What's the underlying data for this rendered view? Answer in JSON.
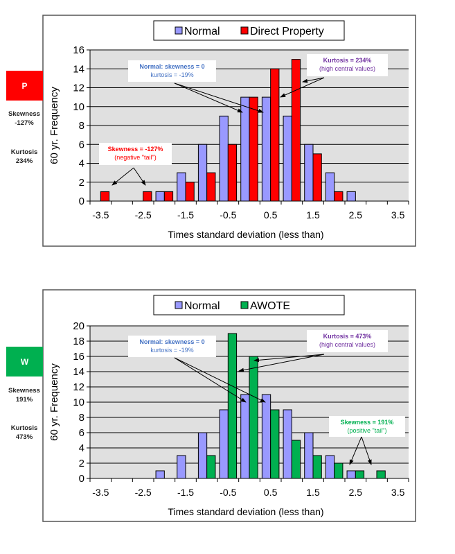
{
  "panels": [
    {
      "badge": {
        "label": "P",
        "color": "#ff0000"
      },
      "skewness": {
        "label": "Skewness",
        "value": "-127%"
      },
      "kurtosis": {
        "label": "Kurtosis",
        "value": "234%"
      }
    },
    {
      "badge": {
        "label": "W",
        "color": "#00b050"
      },
      "skewness": {
        "label": "Skewness",
        "value": "191%"
      },
      "kurtosis": {
        "label": "Kurtosis",
        "value": "473%"
      }
    }
  ],
  "chart_data": [
    {
      "type": "bar",
      "xlabel": "Times standard deviation (less than)",
      "ylabel": "60 yr. Frequency",
      "ylim": [
        0,
        16
      ],
      "yticks": [
        0,
        2,
        4,
        6,
        8,
        10,
        12,
        14,
        16
      ],
      "grid": true,
      "legend": "top",
      "categories": [
        -3.5,
        -3.0,
        -2.5,
        -2.0,
        -1.5,
        -1.0,
        -0.5,
        0.0,
        0.5,
        1.0,
        1.5,
        2.0,
        2.5,
        3.0,
        3.5
      ],
      "xtick_labels": [
        "-3.5",
        "-2.5",
        "-1.5",
        "-0.5",
        "0.5",
        "1.5",
        "2.5",
        "3.5"
      ],
      "series": [
        {
          "name": "Normal",
          "color": "#9999ff",
          "values": [
            0,
            0,
            0,
            1,
            3,
            6,
            9,
            11,
            11,
            9,
            6,
            3,
            1,
            0,
            0
          ]
        },
        {
          "name": "Direct Property",
          "color": "#ff0000",
          "values": [
            1,
            0,
            1,
            1,
            2,
            3,
            6,
            11,
            14,
            15,
            5,
            1,
            0,
            0,
            0
          ]
        }
      ],
      "annotations": [
        {
          "lines": [
            "Normal: skewness  = 0",
            "kurtosis = -19%"
          ],
          "bold_prefix": "Normal",
          "color": "#4472c4"
        },
        {
          "lines": [
            "Kurtosis  = 234%",
            "(high central values)"
          ],
          "color": "#7030a0"
        },
        {
          "lines": [
            "Skewness = -127%",
            "(negative  \"tail\")"
          ],
          "color": "#ff0000"
        }
      ]
    },
    {
      "type": "bar",
      "xlabel": "Times standard deviation (less than)",
      "ylabel": "60 yr. Frequency",
      "ylim": [
        0,
        20
      ],
      "yticks": [
        0,
        2,
        4,
        6,
        8,
        10,
        12,
        14,
        16,
        18,
        20
      ],
      "grid": true,
      "legend": "top",
      "categories": [
        -3.5,
        -3.0,
        -2.5,
        -2.0,
        -1.5,
        -1.0,
        -0.5,
        0.0,
        0.5,
        1.0,
        1.5,
        2.0,
        2.5,
        3.0,
        3.5
      ],
      "xtick_labels": [
        "-3.5",
        "-2.5",
        "-1.5",
        "-0.5",
        "0.5",
        "1.5",
        "2.5",
        "3.5"
      ],
      "series": [
        {
          "name": "Normal",
          "color": "#9999ff",
          "values": [
            0,
            0,
            0,
            1,
            3,
            6,
            9,
            11,
            11,
            9,
            6,
            3,
            1,
            0,
            0
          ]
        },
        {
          "name": "AWOTE",
          "color": "#00b050",
          "values": [
            0,
            0,
            0,
            0,
            0,
            3,
            19,
            16,
            9,
            5,
            3,
            2,
            1,
            1,
            0
          ]
        }
      ],
      "annotations": [
        {
          "lines": [
            "Normal: skewness  = 0",
            "kurtosis = -19%"
          ],
          "bold_prefix": "Normal",
          "color": "#4472c4"
        },
        {
          "lines": [
            "Kurtosis  = 473%",
            "(high central values)"
          ],
          "color": "#7030a0"
        },
        {
          "lines": [
            "Skewness = 191%",
            "(positive  \"tail\")"
          ],
          "color": "#00b050"
        }
      ]
    }
  ]
}
